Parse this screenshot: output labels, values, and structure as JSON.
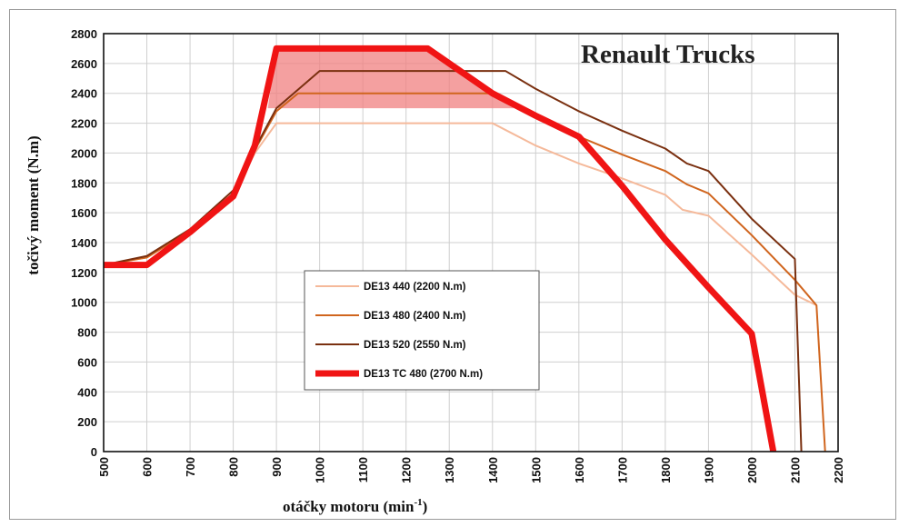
{
  "chart_data": {
    "type": "line",
    "title": "Renault Trucks",
    "xlabel": "otáčky motoru (min",
    "xlabel_sup": "-1",
    "xlabel_close": ")",
    "ylabel": "točivý moment (N.m)",
    "xlim": [
      500,
      2200
    ],
    "ylim": [
      0,
      2800
    ],
    "xticks": [
      500,
      600,
      700,
      800,
      900,
      1000,
      1100,
      1200,
      1300,
      1400,
      1500,
      1600,
      1700,
      1800,
      1900,
      2000,
      2100,
      2200
    ],
    "yticks": [
      0,
      200,
      400,
      600,
      800,
      1000,
      1200,
      1400,
      1600,
      1800,
      2000,
      2200,
      2400,
      2600,
      2800
    ],
    "grid": true,
    "legend_position": "center-left",
    "highlight_band": {
      "color": "#f08080",
      "points": [
        [
          880,
          2300
        ],
        [
          900,
          2700
        ],
        [
          1250,
          2700
        ],
        [
          1450,
          2300
        ]
      ]
    },
    "series": [
      {
        "name": "DE13 440 (2200 N.m)",
        "color": "#f5b99a",
        "width": 2,
        "points": [
          [
            500,
            1250
          ],
          [
            600,
            1300
          ],
          [
            700,
            1480
          ],
          [
            800,
            1720
          ],
          [
            850,
            2000
          ],
          [
            900,
            2200
          ],
          [
            1400,
            2200
          ],
          [
            1500,
            2050
          ],
          [
            1600,
            1930
          ],
          [
            1700,
            1830
          ],
          [
            1800,
            1720
          ],
          [
            1840,
            1620
          ],
          [
            1900,
            1580
          ],
          [
            2000,
            1320
          ],
          [
            2100,
            1050
          ],
          [
            2150,
            980
          ]
        ]
      },
      {
        "name": "DE13 480 (2400 N.m)",
        "color": "#d0651e",
        "width": 2,
        "points": [
          [
            500,
            1250
          ],
          [
            600,
            1300
          ],
          [
            700,
            1480
          ],
          [
            800,
            1730
          ],
          [
            850,
            2020
          ],
          [
            900,
            2280
          ],
          [
            950,
            2400
          ],
          [
            1400,
            2400
          ],
          [
            1500,
            2250
          ],
          [
            1600,
            2110
          ],
          [
            1700,
            1990
          ],
          [
            1800,
            1880
          ],
          [
            1850,
            1790
          ],
          [
            1900,
            1730
          ],
          [
            2000,
            1450
          ],
          [
            2100,
            1150
          ],
          [
            2150,
            980
          ],
          [
            2170,
            0
          ]
        ]
      },
      {
        "name": "DE13 520 (2550 N.m)",
        "color": "#7a3010",
        "width": 2,
        "points": [
          [
            500,
            1250
          ],
          [
            600,
            1310
          ],
          [
            700,
            1490
          ],
          [
            800,
            1750
          ],
          [
            850,
            2030
          ],
          [
            900,
            2300
          ],
          [
            1000,
            2550
          ],
          [
            1430,
            2550
          ],
          [
            1500,
            2430
          ],
          [
            1600,
            2280
          ],
          [
            1700,
            2150
          ],
          [
            1800,
            2030
          ],
          [
            1850,
            1930
          ],
          [
            1900,
            1880
          ],
          [
            2000,
            1560
          ],
          [
            2100,
            1290
          ],
          [
            2115,
            0
          ]
        ]
      },
      {
        "name": "DE13 TC 480 (2700 N.m)",
        "color": "#f01414",
        "width": 7,
        "points": [
          [
            500,
            1250
          ],
          [
            600,
            1250
          ],
          [
            700,
            1470
          ],
          [
            800,
            1710
          ],
          [
            850,
            2050
          ],
          [
            900,
            2700
          ],
          [
            1250,
            2700
          ],
          [
            1400,
            2400
          ],
          [
            1500,
            2250
          ],
          [
            1600,
            2110
          ],
          [
            1700,
            1780
          ],
          [
            1800,
            1420
          ],
          [
            1900,
            1100
          ],
          [
            2000,
            790
          ],
          [
            2050,
            0
          ]
        ]
      }
    ]
  }
}
